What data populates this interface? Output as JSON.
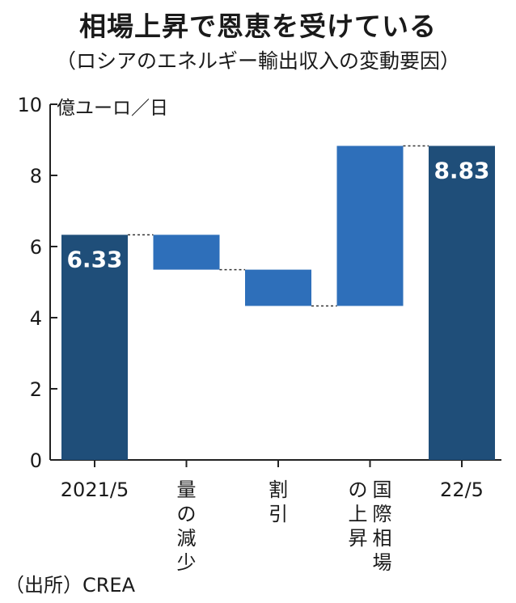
{
  "header": {
    "title": "相場上昇で恩恵を受けている",
    "subtitle": "（ロシアのエネルギー輸出収入の変動要因）"
  },
  "footer": {
    "source": "（出所）CREA"
  },
  "colors": {
    "total": "#1f4e79",
    "change": "#2e6fba",
    "axis": "#222222",
    "connector": "#333333"
  },
  "chart_data": {
    "type": "bar",
    "subtype": "waterfall",
    "title": "相場上昇で恩恵を受けている",
    "subtitle": "（ロシアのエネルギー輸出収入の変動要因）",
    "ylabel": "億ユーロ／日",
    "ylim": [
      0,
      10
    ],
    "yticks": [
      "0",
      "2",
      "4",
      "6",
      "8",
      "10"
    ],
    "grid": false,
    "bars": [
      {
        "category": "2021/5",
        "kind": "total",
        "start": 0,
        "end": 6.33,
        "label": "6.33"
      },
      {
        "category": "量の減少",
        "kind": "change",
        "start": 6.33,
        "end": 5.35,
        "label": ""
      },
      {
        "category": "割引",
        "kind": "change",
        "start": 5.35,
        "end": 4.33,
        "label": ""
      },
      {
        "category": "国際相場の上昇",
        "kind": "change",
        "start": 4.33,
        "end": 8.83,
        "label": ""
      },
      {
        "category": "22/5",
        "kind": "total",
        "start": 0,
        "end": 8.83,
        "label": "8.83"
      }
    ]
  }
}
